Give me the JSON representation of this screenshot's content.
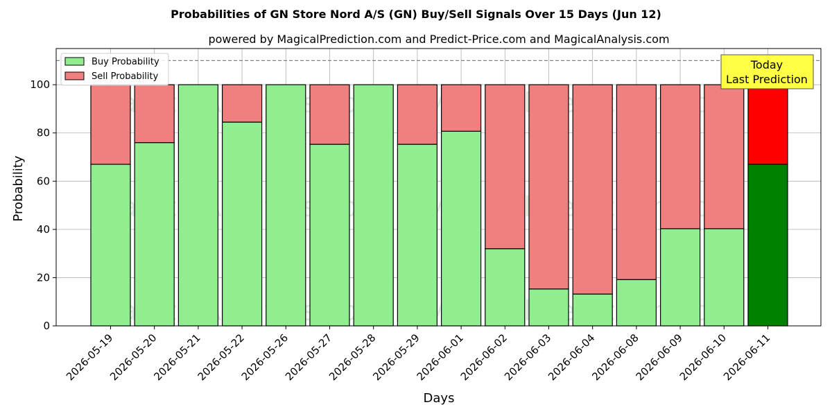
{
  "chart_data": {
    "type": "bar",
    "stacked": true,
    "title": "Probabilities of GN Store Nord A/S (GN) Buy/Sell Signals Over 15 Days (Jun 12)",
    "subtitle": "powered by MagicalPrediction.com and Predict-Price.com and MagicalAnalysis.com",
    "xlabel": "Days",
    "ylabel": "Probability",
    "ylim": [
      0,
      115
    ],
    "yticks": [
      0,
      20,
      40,
      60,
      80,
      100
    ],
    "reference_line": 110,
    "grid": true,
    "legend_position": "top-left",
    "categories": [
      "2026-05-19",
      "2026-05-20",
      "2026-05-21",
      "2026-05-22",
      "2026-05-26",
      "2026-05-27",
      "2026-05-28",
      "2026-05-29",
      "2026-06-01",
      "2026-06-02",
      "2026-06-03",
      "2026-06-04",
      "2026-06-08",
      "2026-06-09",
      "2026-06-10",
      "2026-06-11"
    ],
    "series": [
      {
        "name": "Buy Probability",
        "color": "#90ee90",
        "highlight_color": "#008000",
        "values": [
          67,
          76,
          100,
          84.5,
          100,
          75.3,
          100,
          75.3,
          80.7,
          32,
          15.3,
          13.2,
          19.2,
          40.3,
          40.3,
          67
        ]
      },
      {
        "name": "Sell Probability",
        "color": "#f08080",
        "highlight_color": "#ff0000",
        "values": [
          33,
          24,
          0,
          15.5,
          0,
          24.7,
          0,
          24.7,
          19.3,
          68,
          84.7,
          86.8,
          80.8,
          59.7,
          59.7,
          33
        ]
      }
    ],
    "annotation": {
      "lines": [
        "Today",
        "Last Prediction"
      ],
      "color": "#ffff44"
    },
    "watermarks": [
      "MagicalAnalysis.com",
      "MagicalPrediction.com"
    ]
  }
}
